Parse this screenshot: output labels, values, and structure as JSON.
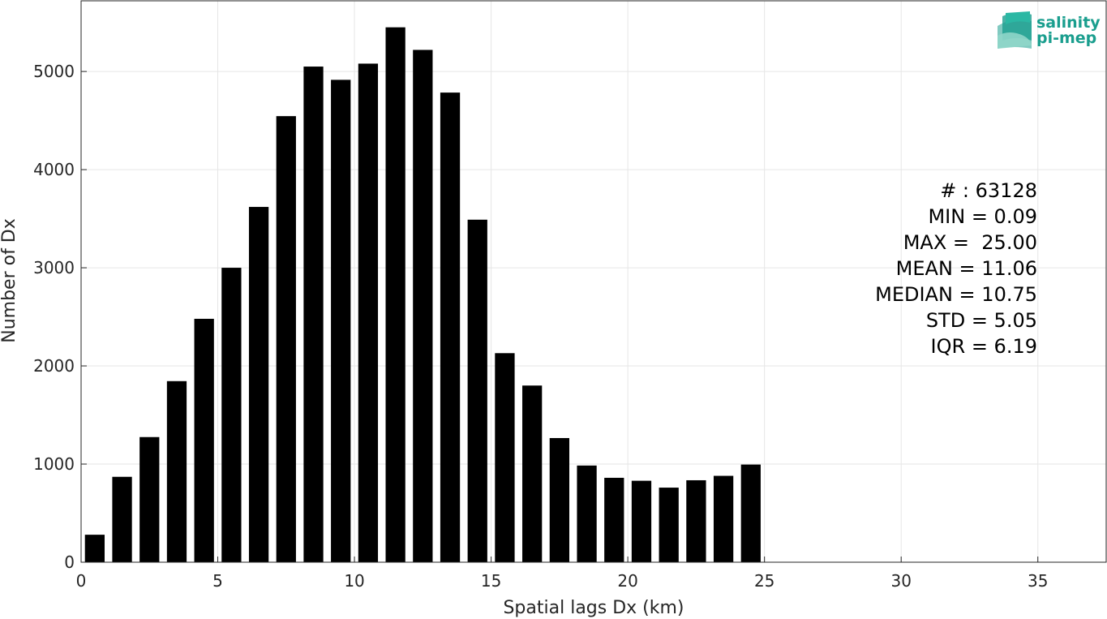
{
  "chart_data": {
    "type": "bar",
    "xlabel": "Spatial lags Dx (km)",
    "ylabel": "Number of Dx",
    "xlim": [
      0,
      37.5
    ],
    "ylim": [
      0,
      5720
    ],
    "xticks": [
      0,
      5,
      10,
      15,
      20,
      25,
      30,
      35
    ],
    "yticks": [
      0,
      1000,
      2000,
      3000,
      4000,
      5000
    ],
    "grid": true,
    "bar_width": 0.72,
    "x": [
      0.5,
      1.5,
      2.5,
      3.5,
      4.5,
      5.5,
      6.5,
      7.5,
      8.5,
      9.5,
      10.5,
      11.5,
      12.5,
      13.5,
      14.5,
      15.5,
      16.5,
      17.5,
      18.5,
      19.5,
      20.5,
      21.5,
      22.5,
      23.5,
      24.5
    ],
    "values": [
      280,
      870,
      1275,
      1845,
      2480,
      3000,
      3620,
      4545,
      5050,
      4915,
      5080,
      5450,
      5220,
      4785,
      3490,
      2130,
      1800,
      1265,
      985,
      860,
      830,
      760,
      835,
      880,
      995
    ],
    "bar_color": "#000000"
  },
  "stats": {
    "count": "# : 63128",
    "min": "MIN = 0.09",
    "max": "MAX =  25.00",
    "mean": "MEAN = 11.06",
    "median": "MEDIAN = 10.75",
    "std": "STD = 5.05",
    "iqr": "IQR = 6.19"
  },
  "logo": {
    "line1": "salinity",
    "line2": "pi-mep",
    "color": "#1a9e8e"
  }
}
